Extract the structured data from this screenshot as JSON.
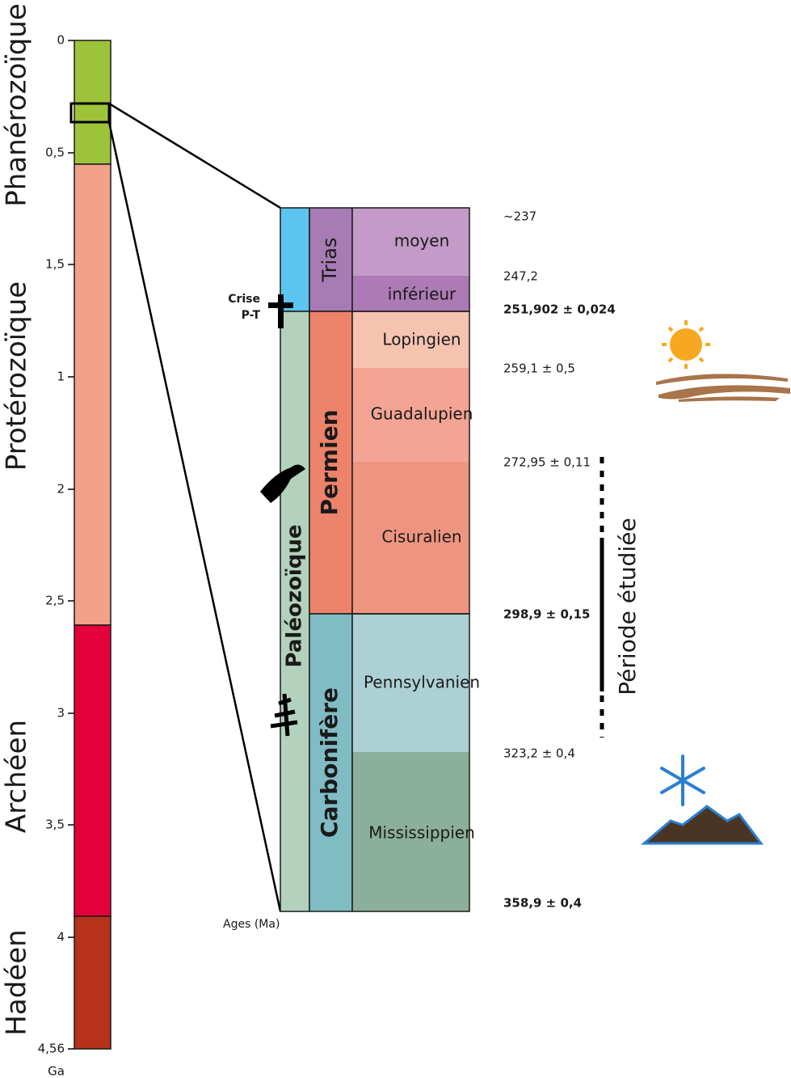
{
  "time_scale": {
    "ticks": [
      "0",
      "0,5",
      "1,5",
      "1",
      "2",
      "2,5",
      "3",
      "3,5",
      "4",
      "4,56"
    ],
    "unit": "Ga",
    "eons": [
      "Phanérozoïque",
      "Protérozoïque",
      "Archéen",
      "Hadéen"
    ]
  },
  "detail": {
    "era": "Paléozoïque",
    "periods": [
      "Trias",
      "Permien",
      "Carbonifère"
    ],
    "epochs": [
      "moyen",
      "inférieur",
      "Lopingien",
      "Guadalupien",
      "Cisuralien",
      "Pennsylvanien",
      "Mississippien"
    ],
    "ages": [
      "~237",
      "247,2",
      "251,902 ± 0,024",
      "259,1 ± 0,5",
      "272,95 ± 0,11",
      "298,9 ± 0,15",
      "323,2 ± 0,4",
      "358,9 ± 0,4"
    ],
    "ages_label": "Ages (Ma)",
    "crisis": [
      "Crise",
      "P-T"
    ],
    "studied_period": "Période étudiée"
  }
}
